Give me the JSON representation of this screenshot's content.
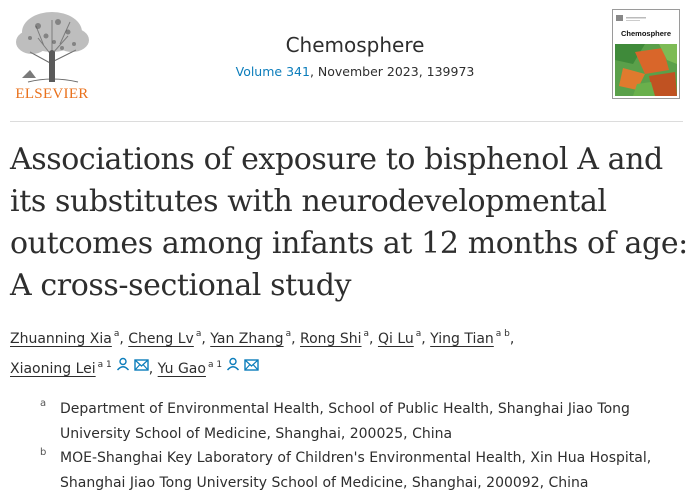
{
  "publisher": {
    "name": "ELSEVIER"
  },
  "journal": {
    "title": "Chemosphere",
    "volume_link": "Volume 341",
    "date_article": ", November 2023, 139973",
    "cover_title": "Chemosphere"
  },
  "article": {
    "title": "Associations of exposure to bisphenol A and its substitutes with neurodevelopmental outcomes among infants at 12 months of age: A cross-sectional study"
  },
  "authors": [
    {
      "name": "Zhuanning Xia",
      "sup": "a",
      "sep": ","
    },
    {
      "name": "Cheng Lv",
      "sup": "a",
      "sep": ","
    },
    {
      "name": "Yan Zhang",
      "sup": "a",
      "sep": ","
    },
    {
      "name": "Rong Shi",
      "sup": "a",
      "sep": ","
    },
    {
      "name": "Qi Lu",
      "sup": "a",
      "sep": ","
    },
    {
      "name": "Ying Tian",
      "sup": "a b",
      "sep": ","
    },
    {
      "name": "Xiaoning Lei",
      "sup": "a 1",
      "sep": ",",
      "icons": [
        "person-icon",
        "mail-icon"
      ]
    },
    {
      "name": "Yu Gao",
      "sup": "a 1",
      "sep": "",
      "icons": [
        "person-icon",
        "mail-icon"
      ]
    }
  ],
  "affiliations": [
    {
      "mark": "a",
      "text": "Department of Environmental Health, School of Public Health, Shanghai Jiao Tong University School of Medicine, Shanghai, 200025, China"
    },
    {
      "mark": "b",
      "text": "MOE-Shanghai Key Laboratory of Children's Environmental Health, Xin Hua Hospital, Shanghai Jiao Tong University School of Medicine, Shanghai, 200092, China"
    }
  ],
  "colors": {
    "publisher_orange": "#e9711c",
    "link_blue": "#0c7dbb",
    "text": "#2e2e2e"
  }
}
